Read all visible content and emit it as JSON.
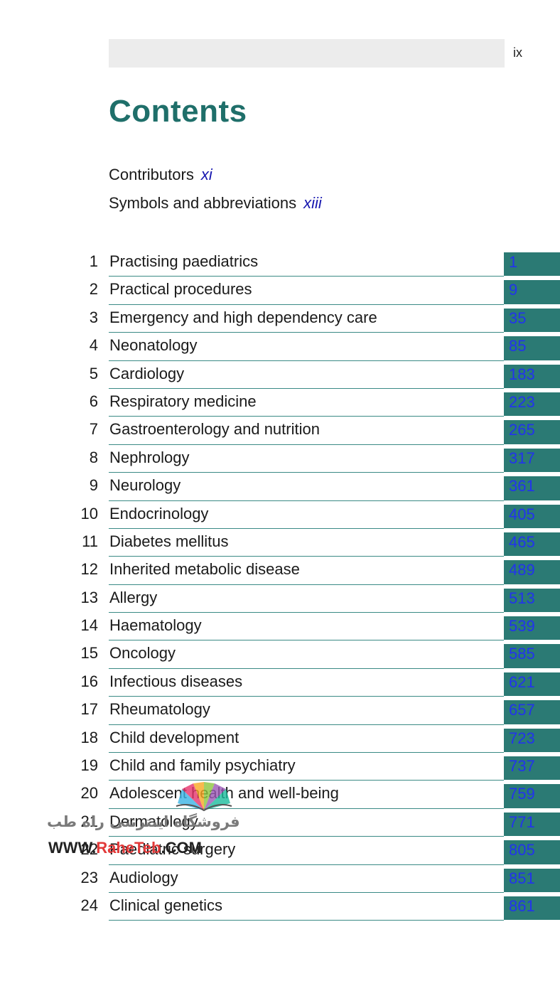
{
  "header": {
    "page_number": "ix"
  },
  "title": "Contents",
  "front_matter": [
    {
      "label": "Contributors",
      "page": "xi"
    },
    {
      "label": "Symbols and abbreviations",
      "page": "xiii"
    }
  ],
  "chapters": [
    {
      "num": "1",
      "title": "Practising paediatrics",
      "page": "1"
    },
    {
      "num": "2",
      "title": "Practical procedures",
      "page": "9"
    },
    {
      "num": "3",
      "title": "Emergency and high dependency care",
      "page": "35"
    },
    {
      "num": "4",
      "title": "Neonatology",
      "page": "85"
    },
    {
      "num": "5",
      "title": "Cardiology",
      "page": "183"
    },
    {
      "num": "6",
      "title": "Respiratory medicine",
      "page": "223"
    },
    {
      "num": "7",
      "title": "Gastroenterology and nutrition",
      "page": "265"
    },
    {
      "num": "8",
      "title": "Nephrology",
      "page": "317"
    },
    {
      "num": "9",
      "title": "Neurology",
      "page": "361"
    },
    {
      "num": "10",
      "title": "Endocrinology",
      "page": "405"
    },
    {
      "num": "11",
      "title": "Diabetes mellitus",
      "page": "465"
    },
    {
      "num": "12",
      "title": "Inherited metabolic disease",
      "page": "489"
    },
    {
      "num": "13",
      "title": "Allergy",
      "page": "513"
    },
    {
      "num": "14",
      "title": "Haematology",
      "page": "539"
    },
    {
      "num": "15",
      "title": "Oncology",
      "page": "585"
    },
    {
      "num": "16",
      "title": "Infectious diseases",
      "page": "621"
    },
    {
      "num": "17",
      "title": "Rheumatology",
      "page": "657"
    },
    {
      "num": "18",
      "title": "Child development",
      "page": "723"
    },
    {
      "num": "19",
      "title": "Child and family psychiatry",
      "page": "737"
    },
    {
      "num": "20",
      "title": "Adolescent health and well-being",
      "page": "759"
    },
    {
      "num": "21",
      "title": "Dermatology",
      "page": "771"
    },
    {
      "num": "22",
      "title": "Paediatric surgery",
      "page": "805"
    },
    {
      "num": "23",
      "title": "Audiology",
      "page": "851"
    },
    {
      "num": "24",
      "title": "Clinical genetics",
      "page": "861"
    }
  ],
  "watermark": {
    "persian_text": "فروشگاه اینترنتی راه طب",
    "url_prefix": "WWW.",
    "url_brand": "RaheTeb",
    "url_suffix": ".COM"
  },
  "colors": {
    "title": "#1f6f6a",
    "tab": "#2b7a74",
    "page_link": "#2233ee",
    "rule": "#3a8a85"
  }
}
